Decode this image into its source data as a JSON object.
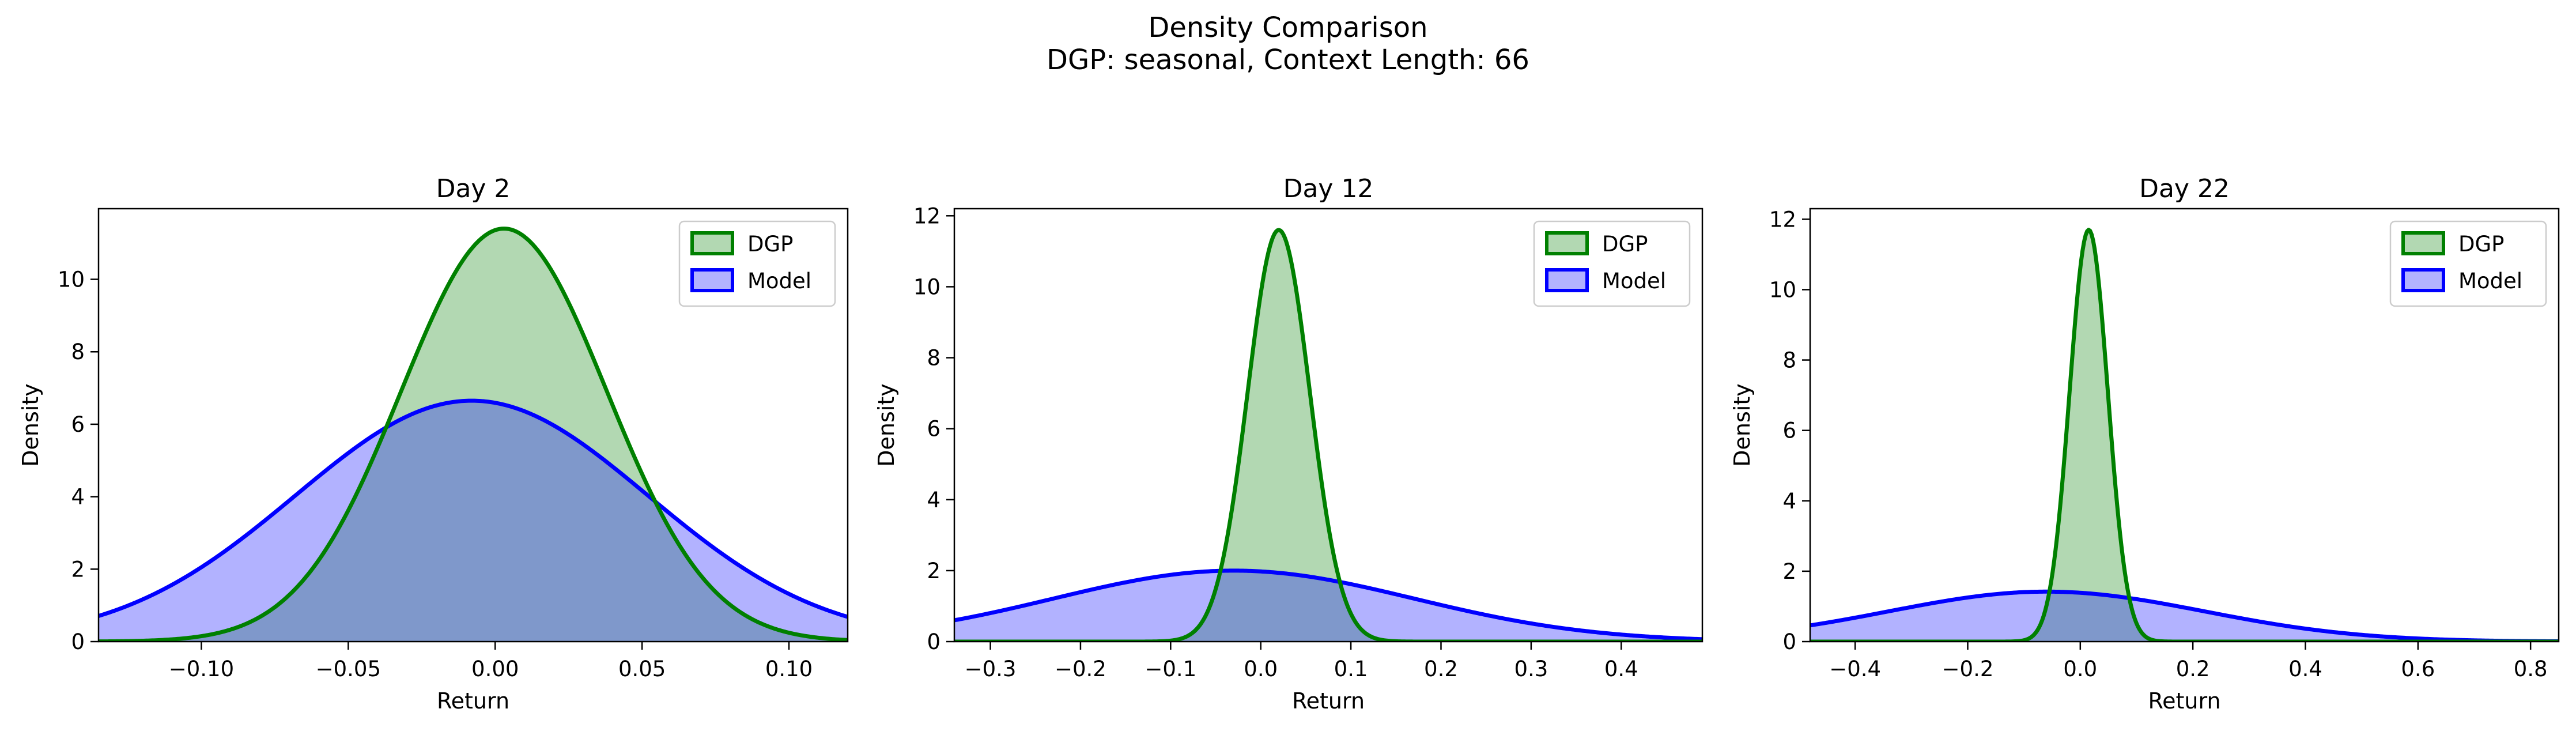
{
  "figure": {
    "title_line1": "Density Comparison",
    "title_line2": "DGP: seasonal, Context Length: 66"
  },
  "colors": {
    "dgp_line": "#008000",
    "dgp_fill": "#b2d8b2",
    "model_line": "#0000ff",
    "model_fill": "#b2b2ff",
    "overlap_fill": "#7f98cb"
  },
  "chart_data": [
    {
      "type": "area",
      "title": "Day 2",
      "xlabel": "Return",
      "ylabel": "Density",
      "xlim": [
        -0.135,
        0.12
      ],
      "ylim": [
        0,
        11.95
      ],
      "xticks": [
        -0.1,
        -0.05,
        0.0,
        0.05,
        0.1
      ],
      "xtick_labels": [
        "−0.10",
        "−0.05",
        "0.00",
        "0.05",
        "0.10"
      ],
      "yticks": [
        0,
        2,
        4,
        6,
        8,
        10
      ],
      "legend": "top-right",
      "grid": false,
      "series": [
        {
          "name": "DGP",
          "distribution": "normal",
          "mean": 0.003,
          "peak_density": 11.4
        },
        {
          "name": "Model",
          "distribution": "normal",
          "mean": -0.008,
          "peak_density": 6.65
        }
      ]
    },
    {
      "type": "area",
      "title": "Day 12",
      "xlabel": "Return",
      "ylabel": "Density",
      "xlim": [
        -0.34,
        0.49
      ],
      "ylim": [
        0,
        12.2
      ],
      "xticks": [
        -0.3,
        -0.2,
        -0.1,
        0.0,
        0.1,
        0.2,
        0.3,
        0.4
      ],
      "xtick_labels": [
        "−0.3",
        "−0.2",
        "−0.1",
        "0.0",
        "0.1",
        "0.2",
        "0.3",
        "0.4"
      ],
      "yticks": [
        0,
        2,
        4,
        6,
        8,
        10,
        12
      ],
      "legend": "top-right",
      "grid": false,
      "series": [
        {
          "name": "DGP",
          "distribution": "normal",
          "mean": 0.02,
          "peak_density": 11.6
        },
        {
          "name": "Model",
          "distribution": "normal",
          "mean": -0.03,
          "peak_density": 2.0
        }
      ]
    },
    {
      "type": "area",
      "title": "Day 22",
      "xlabel": "Return",
      "ylabel": "Density",
      "xlim": [
        -0.48,
        0.85
      ],
      "ylim": [
        0,
        12.3
      ],
      "xticks": [
        -0.4,
        -0.2,
        0.0,
        0.2,
        0.4,
        0.6,
        0.8
      ],
      "xtick_labels": [
        "−0.4",
        "−0.2",
        "0.0",
        "0.2",
        "0.4",
        "0.6",
        "0.8"
      ],
      "yticks": [
        0,
        2,
        4,
        6,
        8,
        10,
        12
      ],
      "legend": "top-right",
      "grid": false,
      "series": [
        {
          "name": "DGP",
          "distribution": "normal",
          "mean": 0.015,
          "peak_density": 11.7
        },
        {
          "name": "Model",
          "distribution": "normal",
          "mean": -0.06,
          "peak_density": 1.42
        }
      ]
    }
  ]
}
